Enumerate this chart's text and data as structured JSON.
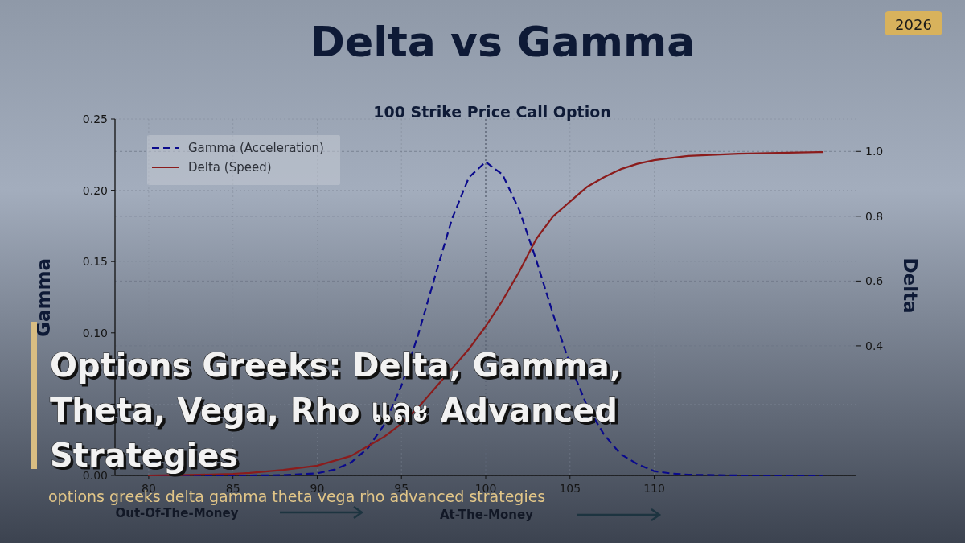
{
  "chart_data": {
    "type": "line",
    "title": "Delta vs Gamma",
    "subtitle": "100 Strike Price Call Option",
    "ylabel": "Gamma",
    "y2label": "Delta",
    "x": [
      80,
      83,
      85,
      86,
      88,
      90,
      91,
      92,
      93,
      94,
      95,
      96,
      97,
      98,
      99,
      100,
      101,
      102,
      103,
      104,
      105,
      106,
      107,
      108,
      109,
      110,
      111,
      112,
      115,
      120
    ],
    "series": [
      {
        "name": "Gamma (Acceleration)",
        "color": "#0a0a8c",
        "line_style": "dashed",
        "values": [
          0,
          0,
          0,
          0,
          0.0002,
          0.0015,
          0.004,
          0.009,
          0.019,
          0.036,
          0.063,
          0.099,
          0.14,
          0.18,
          0.209,
          0.22,
          0.211,
          0.186,
          0.151,
          0.113,
          0.078,
          0.049,
          0.029,
          0.015,
          0.008,
          0.003,
          0.0014,
          0.0005,
          0,
          0
        ]
      },
      {
        "name": "Delta (Speed)",
        "color": "#8b1c1c",
        "line_style": "solid",
        "axis": "y2",
        "values": [
          0,
          0.002,
          0.005,
          0.008,
          0.017,
          0.03,
          0.045,
          0.06,
          0.09,
          0.12,
          0.16,
          0.21,
          0.27,
          0.33,
          0.39,
          0.46,
          0.54,
          0.63,
          0.73,
          0.8,
          0.845,
          0.89,
          0.92,
          0.945,
          0.962,
          0.973,
          0.98,
          0.986,
          0.993,
          0.998
        ]
      }
    ],
    "xlim": [
      78,
      122
    ],
    "xticks": [
      80,
      85,
      90,
      95,
      100,
      105,
      110
    ],
    "ylim": [
      0,
      0.25
    ],
    "yticks": [
      {
        "value": 0,
        "label": "0.00"
      },
      {
        "value": 0.05,
        "label": null
      },
      {
        "value": 0.1,
        "label": "0.10"
      },
      {
        "value": 0.15,
        "label": "0.15"
      },
      {
        "value": 0.2,
        "label": "0.20"
      },
      0.25
    ],
    "y2lim": [
      0,
      1.1
    ],
    "y2ticks": [
      0.4,
      0.6,
      0.8,
      {
        "value": 1,
        "label": "1.0"
      }
    ],
    "ref_lines": [
      {
        "axis": "x",
        "value": 100,
        "color": "#555e6e",
        "line_style": "dotted"
      }
    ],
    "grid": true,
    "legend": "top left",
    "marker": "none",
    "annotations": [
      "2026",
      "Options Greeks: Delta, Gamma, Theta, Vega, Rho และ Advanced Strategies",
      "options greeks delta gamma theta vega rho advanced strategies",
      "Out-Of-The-Money",
      "At-The-Money"
    ]
  }
}
